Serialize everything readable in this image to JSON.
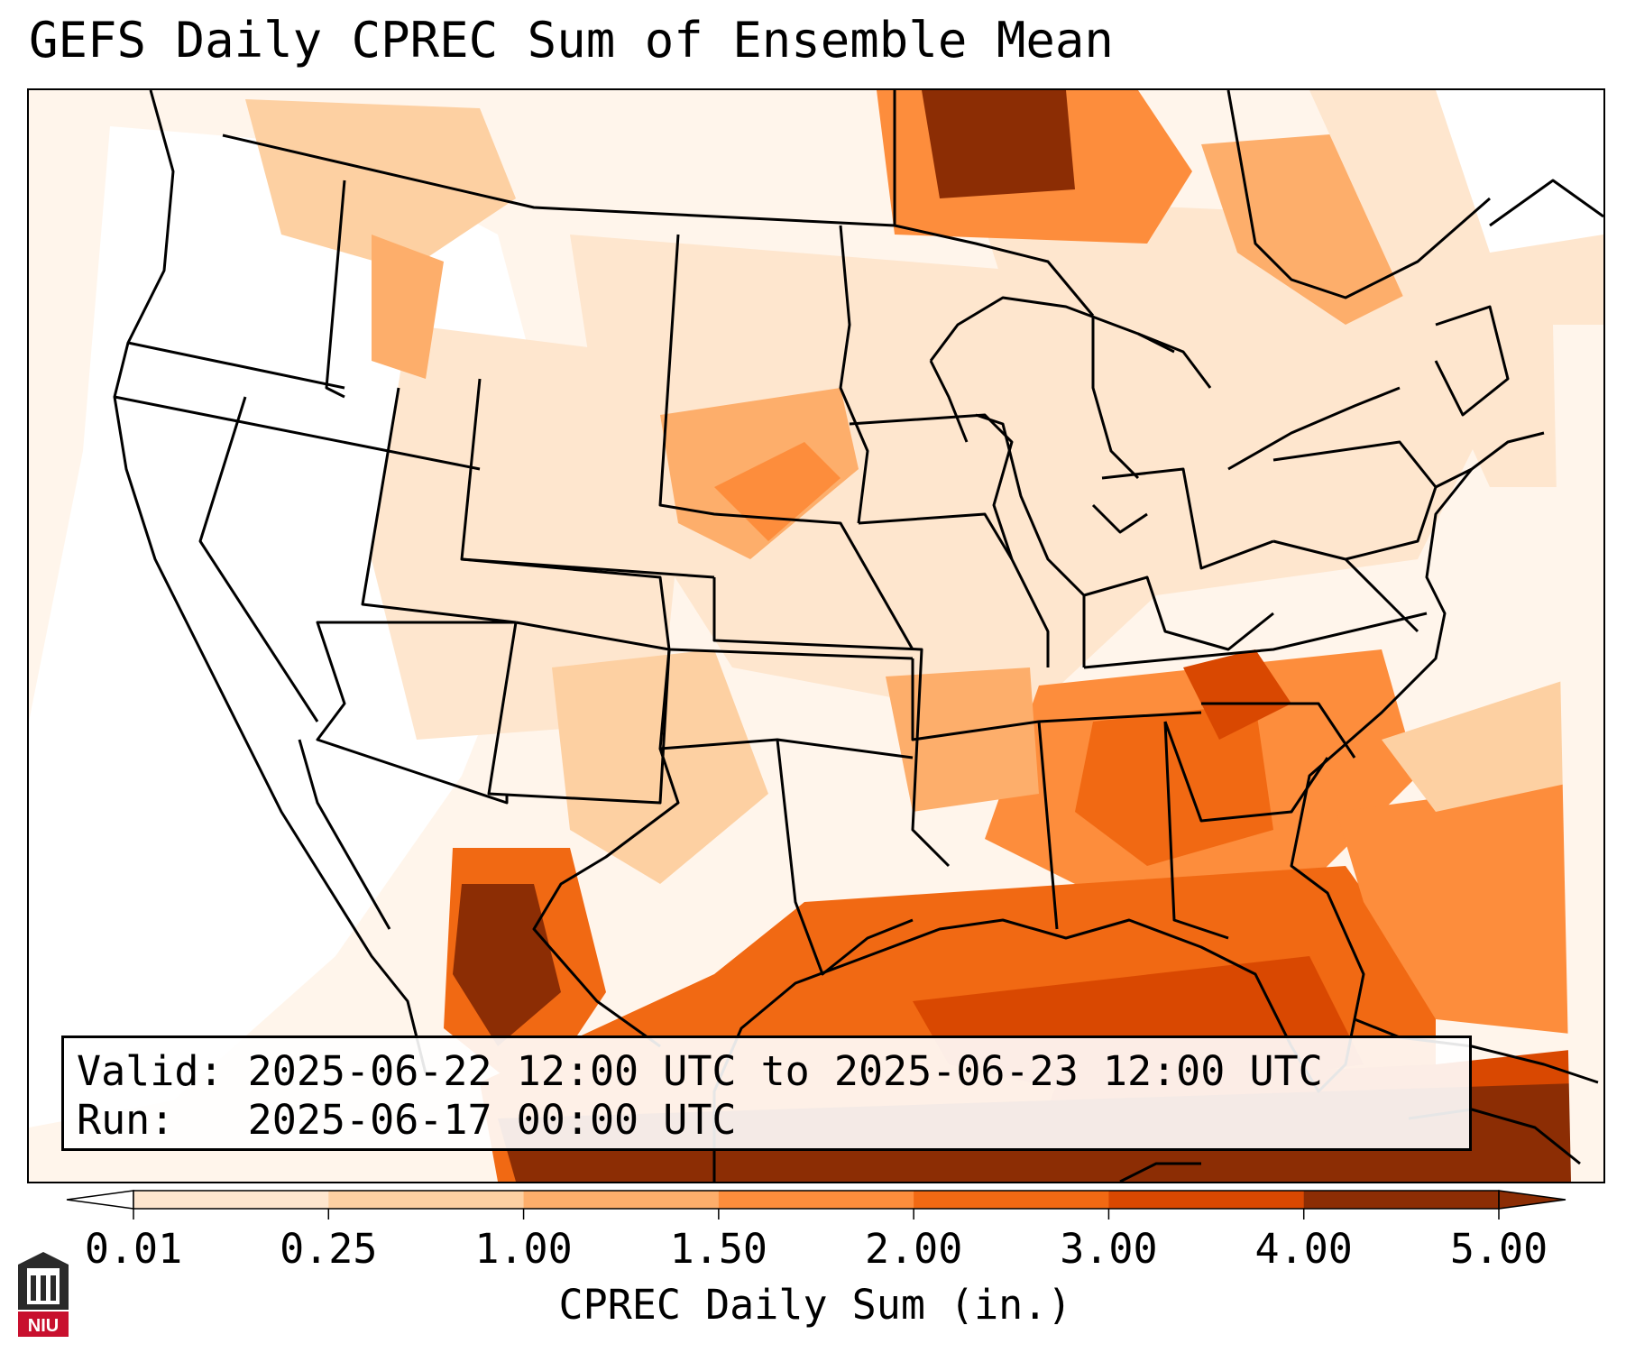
{
  "title": "GEFS Daily CPREC Sum of Ensemble Mean",
  "info": {
    "valid_label": "Valid:",
    "valid_text": "2025-06-22 12:00 UTC to 2025-06-23 12:00 UTC",
    "run_label": "Run:",
    "run_text": "2025-06-17 00:00 UTC"
  },
  "colorbar": {
    "label": "CPREC Daily Sum (in.)",
    "ticks": [
      "0.01",
      "0.25",
      "1.00",
      "1.50",
      "2.00",
      "3.00",
      "4.00",
      "5.00"
    ],
    "colors": [
      "#fff5eb",
      "#fee6ce",
      "#fdd0a2",
      "#fdae6b",
      "#fd8d3c",
      "#f16913",
      "#d94801",
      "#8c2d04"
    ],
    "extend": "both"
  },
  "legend_colors": {
    "below_min": "#ffffff",
    "above_max": "#8c2d04"
  },
  "logo": {
    "text": "NIU",
    "icon": "niu-tower-logo-icon"
  }
}
